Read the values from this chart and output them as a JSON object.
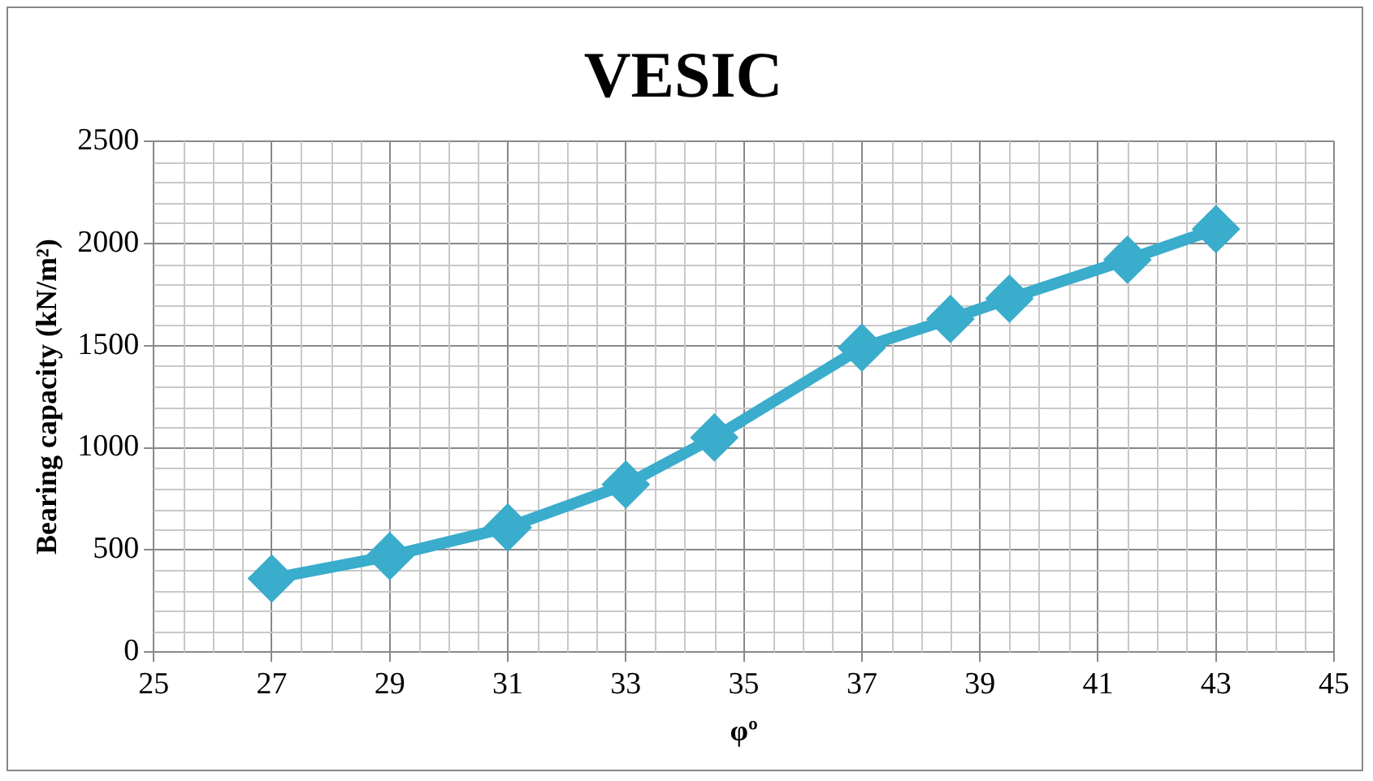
{
  "chart_data": {
    "type": "line",
    "title": "VESIC",
    "xlabel": "φº",
    "ylabel": "Bearing capacity (kN/m²)",
    "x": [
      27,
      29,
      31,
      33,
      34.5,
      37,
      38.5,
      39.5,
      41.5,
      43
    ],
    "series": [
      {
        "color": "#3aaccc",
        "values": [
          360,
          470,
          610,
          820,
          1050,
          1490,
          1630,
          1730,
          1920,
          2070
        ]
      }
    ],
    "xlim": [
      25,
      45
    ],
    "xticks": [
      25,
      27,
      29,
      31,
      33,
      35,
      37,
      39,
      41,
      43,
      45
    ],
    "ylim": [
      0,
      2500
    ],
    "yticks": [
      0,
      500,
      1000,
      1500,
      2000,
      2500
    ],
    "grid": true,
    "marker": "diamond",
    "line_style": "solid",
    "legend": false
  }
}
